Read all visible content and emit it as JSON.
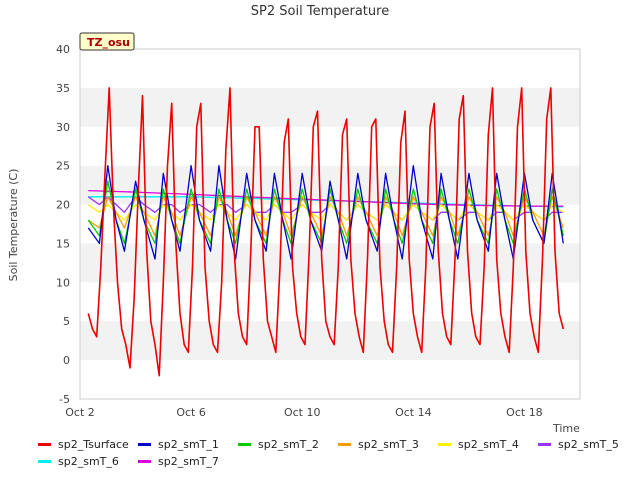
{
  "chart_data": {
    "type": "line",
    "title": "SP2 Soil Temperature",
    "xlabel": "Time",
    "ylabel": "Soil Temperature (C)",
    "ylim": [
      -5,
      40
    ],
    "yticks": [
      -5,
      0,
      5,
      10,
      15,
      20,
      25,
      30,
      35,
      40
    ],
    "xlim": [
      2,
      20
    ],
    "xticks": [
      {
        "value": 2,
        "label": "Oct 2"
      },
      {
        "value": 6,
        "label": "Oct 6"
      },
      {
        "value": 10,
        "label": "Oct 10"
      },
      {
        "value": 14,
        "label": "Oct 14"
      },
      {
        "value": 18,
        "label": "Oct 18"
      }
    ],
    "annotation": "TZ_osu",
    "grid": "horizontal bands",
    "legend_position": "bottom",
    "series": [
      {
        "name": "sp2_Tsurface",
        "color": "#ee0000",
        "x": [
          2.3,
          2.45,
          2.6,
          2.75,
          2.9,
          3.05,
          3.2,
          3.35,
          3.5,
          3.65,
          3.8,
          3.95,
          4.1,
          4.25,
          4.4,
          4.55,
          4.7,
          4.85,
          5.0,
          5.15,
          5.3,
          5.45,
          5.6,
          5.75,
          5.9,
          6.05,
          6.2,
          6.35,
          6.5,
          6.65,
          6.8,
          6.95,
          7.1,
          7.25,
          7.4,
          7.55,
          7.7,
          7.85,
          8.0,
          8.15,
          8.3,
          8.45,
          8.6,
          8.75,
          8.9,
          9.05,
          9.2,
          9.35,
          9.5,
          9.65,
          9.8,
          9.95,
          10.1,
          10.25,
          10.4,
          10.55,
          10.7,
          10.85,
          11.0,
          11.15,
          11.3,
          11.45,
          11.6,
          11.75,
          11.9,
          12.05,
          12.2,
          12.35,
          12.5,
          12.65,
          12.8,
          12.95,
          13.1,
          13.25,
          13.4,
          13.55,
          13.7,
          13.85,
          14.0,
          14.15,
          14.3,
          14.45,
          14.6,
          14.75,
          14.9,
          15.05,
          15.2,
          15.35,
          15.5,
          15.65,
          15.8,
          15.95,
          16.1,
          16.25,
          16.4,
          16.55,
          16.7,
          16.85,
          17.0,
          17.15,
          17.3,
          17.45,
          17.6,
          17.75,
          17.9,
          18.05,
          18.2,
          18.35,
          18.5,
          18.65,
          18.8,
          18.95,
          19.1,
          19.25,
          19.4
        ],
        "y": [
          6,
          4,
          3,
          12,
          24,
          35,
          20,
          10,
          4,
          2,
          -1,
          8,
          22,
          34,
          14,
          5,
          2,
          -2,
          10,
          25,
          33,
          15,
          6,
          2,
          1,
          12,
          30,
          33,
          12,
          5,
          2,
          1,
          10,
          27,
          35,
          14,
          6,
          3,
          2,
          14,
          30,
          30,
          13,
          5,
          3,
          1,
          12,
          28,
          31,
          12,
          6,
          3,
          2,
          14,
          30,
          32,
          13,
          5,
          3,
          2,
          12,
          29,
          31,
          13,
          6,
          3,
          1,
          13,
          30,
          31,
          12,
          5,
          2,
          1,
          12,
          28,
          32,
          13,
          6,
          3,
          1,
          12,
          30,
          33,
          14,
          6,
          3,
          2,
          13,
          31,
          34,
          14,
          6,
          3,
          2,
          12,
          29,
          35,
          13,
          6,
          3,
          1,
          12,
          30,
          35,
          14,
          6,
          3,
          1,
          13,
          31,
          35,
          14,
          6,
          4
        ]
      },
      {
        "name": "sp2_smT_1",
        "color": "#0000cc",
        "x": [
          2.3,
          2.7,
          3.0,
          3.3,
          3.6,
          4.0,
          4.3,
          4.7,
          5.0,
          5.3,
          5.6,
          6.0,
          6.3,
          6.7,
          7.0,
          7.3,
          7.6,
          8.0,
          8.3,
          8.7,
          9.0,
          9.3,
          9.6,
          10.0,
          10.3,
          10.7,
          11.0,
          11.3,
          11.6,
          12.0,
          12.3,
          12.7,
          13.0,
          13.3,
          13.6,
          14.0,
          14.3,
          14.7,
          15.0,
          15.3,
          15.6,
          16.0,
          16.3,
          16.7,
          17.0,
          17.3,
          17.6,
          18.0,
          18.3,
          18.7,
          19.0,
          19.4
        ],
        "y": [
          17,
          15,
          25,
          18,
          14,
          23,
          18,
          13,
          24,
          18,
          14,
          25,
          18,
          14,
          25,
          18,
          13,
          24,
          18,
          14,
          24,
          18,
          13,
          24,
          18,
          14,
          23,
          18,
          13,
          24,
          18,
          14,
          24,
          18,
          13,
          25,
          18,
          13,
          24,
          18,
          13,
          24,
          18,
          14,
          24,
          18,
          13,
          24,
          18,
          15,
          24,
          15
        ]
      },
      {
        "name": "sp2_smT_2",
        "color": "#00cc00",
        "x": [
          2.3,
          2.7,
          3.0,
          3.3,
          3.6,
          4.0,
          4.3,
          4.7,
          5.0,
          5.3,
          5.6,
          6.0,
          6.3,
          6.7,
          7.0,
          7.3,
          7.6,
          8.0,
          8.3,
          8.7,
          9.0,
          9.3,
          9.6,
          10.0,
          10.3,
          10.7,
          11.0,
          11.3,
          11.6,
          12.0,
          12.3,
          12.7,
          13.0,
          13.3,
          13.6,
          14.0,
          14.3,
          14.7,
          15.0,
          15.3,
          15.6,
          16.0,
          16.3,
          16.7,
          17.0,
          17.3,
          17.6,
          18.0,
          18.3,
          18.7,
          19.0,
          19.4
        ],
        "y": [
          18,
          16,
          23,
          18,
          15,
          22,
          18,
          15,
          22,
          18,
          15,
          22,
          18,
          15,
          22,
          18,
          15,
          22,
          18,
          15,
          22,
          18,
          15,
          22,
          18,
          15,
          22,
          18,
          15,
          22,
          18,
          15,
          22,
          18,
          15,
          22,
          18,
          15,
          22,
          18,
          15,
          22,
          18,
          15,
          22,
          18,
          15,
          22,
          18,
          15,
          22,
          16
        ]
      },
      {
        "name": "sp2_smT_3",
        "color": "#ff9900",
        "x": [
          2.3,
          2.7,
          3.0,
          3.3,
          3.6,
          4.0,
          4.3,
          4.7,
          5.0,
          5.3,
          5.6,
          6.0,
          6.3,
          6.7,
          7.0,
          7.3,
          7.6,
          8.0,
          8.3,
          8.7,
          9.0,
          9.3,
          9.6,
          10.0,
          10.3,
          10.7,
          11.0,
          11.3,
          11.6,
          12.0,
          12.3,
          12.7,
          13.0,
          13.3,
          13.6,
          14.0,
          14.3,
          14.7,
          15.0,
          15.3,
          15.6,
          16.0,
          16.3,
          16.7,
          17.0,
          17.3,
          17.6,
          18.0,
          18.3,
          18.7,
          19.0,
          19.4
        ],
        "y": [
          18,
          17,
          21,
          19,
          17,
          21,
          19,
          16,
          21,
          19,
          16,
          21,
          19,
          16,
          21,
          19,
          16,
          21,
          19,
          16,
          21,
          19,
          16,
          21,
          19,
          16,
          21,
          19,
          16,
          21,
          19,
          16,
          21,
          19,
          16,
          21,
          19,
          16,
          21,
          19,
          16,
          21,
          19,
          16,
          21,
          19,
          16,
          21,
          19,
          16,
          21,
          17
        ]
      },
      {
        "name": "sp2_smT_4",
        "color": "#ffee00",
        "x": [
          2.3,
          2.7,
          3.0,
          3.3,
          3.6,
          4.0,
          4.3,
          4.7,
          5.0,
          5.3,
          5.6,
          6.0,
          6.3,
          6.7,
          7.0,
          7.3,
          7.6,
          8.0,
          8.3,
          8.7,
          9.0,
          9.3,
          9.6,
          10.0,
          10.3,
          10.7,
          11.0,
          11.3,
          11.6,
          12.0,
          12.3,
          12.7,
          13.0,
          13.3,
          13.6,
          14.0,
          14.3,
          14.7,
          15.0,
          15.3,
          15.6,
          16.0,
          16.3,
          16.7,
          17.0,
          17.3,
          17.6,
          18.0,
          18.3,
          18.7,
          19.0,
          19.4
        ],
        "y": [
          20,
          19,
          20,
          19,
          18,
          20,
          19,
          18,
          20,
          19,
          18,
          20,
          19,
          18,
          20,
          19,
          18,
          20,
          19,
          18,
          20,
          19,
          18,
          20,
          19,
          18,
          20,
          19,
          18,
          20,
          19,
          18,
          20,
          19,
          18,
          20,
          19,
          18,
          20,
          19,
          18,
          20,
          19,
          18,
          20,
          19,
          18,
          20,
          19,
          18,
          20,
          19
        ]
      },
      {
        "name": "sp2_smT_5",
        "color": "#9933ff",
        "x": [
          2.3,
          2.7,
          3.0,
          3.3,
          3.6,
          4.0,
          4.3,
          4.7,
          5.0,
          5.3,
          5.6,
          6.0,
          6.3,
          6.7,
          7.0,
          7.3,
          7.6,
          8.0,
          8.3,
          8.7,
          9.0,
          9.3,
          9.6,
          10.0,
          10.3,
          10.7,
          11.0,
          11.3,
          11.6,
          12.0,
          12.3,
          12.7,
          13.0,
          13.3,
          13.6,
          14.0,
          14.3,
          14.7,
          15.0,
          15.3,
          15.6,
          16.0,
          16.3,
          16.7,
          17.0,
          17.3,
          17.6,
          18.0,
          18.3,
          18.7,
          19.0,
          19.4
        ],
        "y": [
          21,
          20,
          21,
          20,
          19,
          21,
          20,
          19,
          20,
          20,
          19,
          20,
          20,
          19,
          20,
          20,
          19,
          20,
          19,
          19,
          20,
          19,
          19,
          20,
          19,
          19,
          20,
          19,
          18,
          20,
          19,
          18,
          20,
          19,
          18,
          20,
          19,
          18,
          19,
          19,
          18,
          19,
          19,
          18,
          19,
          19,
          18,
          19,
          19,
          18,
          19,
          19
        ]
      },
      {
        "name": "sp2_smT_6",
        "color": "#00eeee",
        "x": [
          2.3,
          4.0,
          6.0,
          8.0,
          10.0,
          12.0,
          14.0,
          16.0,
          18.0,
          19.4
        ],
        "y": [
          21,
          21,
          21,
          20.8,
          20.6,
          20.4,
          20.2,
          20,
          19.8,
          19.7
        ]
      },
      {
        "name": "sp2_smT_7",
        "color": "#dd00dd",
        "x": [
          2.3,
          4.0,
          6.0,
          8.0,
          10.0,
          12.0,
          14.0,
          16.0,
          18.0,
          19.4
        ],
        "y": [
          21.8,
          21.6,
          21.3,
          21,
          20.7,
          20.4,
          20.1,
          19.9,
          19.8,
          19.8
        ]
      }
    ]
  }
}
